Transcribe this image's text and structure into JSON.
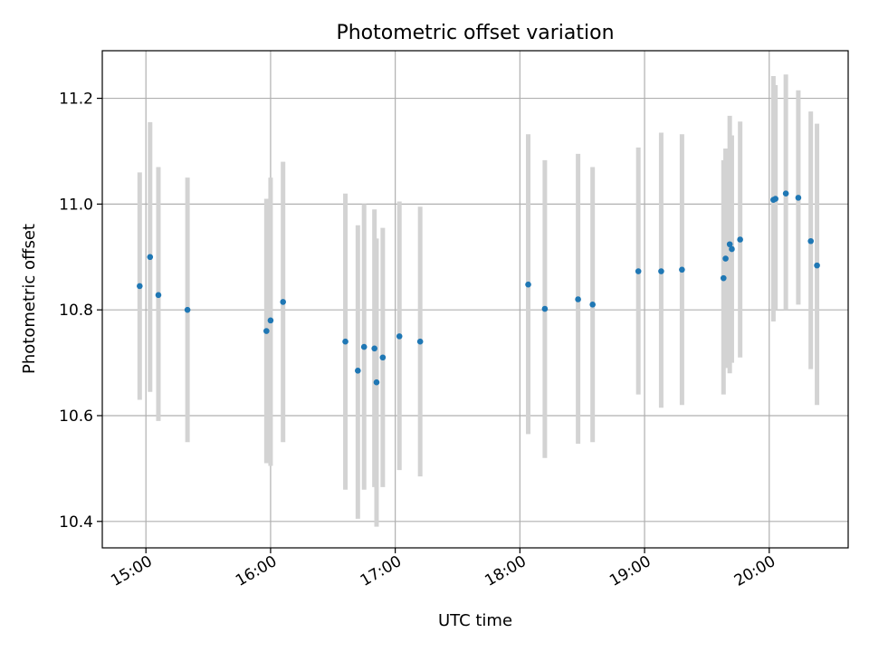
{
  "chart_data": {
    "type": "scatter",
    "title": "Photometric offset variation",
    "xlabel": "UTC time",
    "ylabel": "Photometric offset",
    "x_ticks": [
      "15:00",
      "16:00",
      "17:00",
      "18:00",
      "19:00",
      "20:00"
    ],
    "x_tick_hours": [
      15,
      16,
      17,
      18,
      19,
      20
    ],
    "y_ticks": [
      "10.4",
      "10.6",
      "10.8",
      "11.0",
      "11.2"
    ],
    "y_tick_values": [
      10.4,
      10.6,
      10.8,
      11.0,
      11.2
    ],
    "xlim": [
      "14:39",
      "20:38"
    ],
    "ylim": [
      10.35,
      11.29
    ],
    "grid": true,
    "colors": {
      "points": "#1f77b4",
      "error_bars": "#d3d3d3",
      "grid": "#b0b0b0"
    },
    "series": [
      {
        "points": [
          {
            "x": "14:57",
            "y": 10.845,
            "err_low": 10.63,
            "err_high": 11.06
          },
          {
            "x": "15:02",
            "y": 10.9,
            "err_low": 10.645,
            "err_high": 11.155
          },
          {
            "x": "15:06",
            "y": 10.828,
            "err_low": 10.59,
            "err_high": 11.07
          },
          {
            "x": "15:20",
            "y": 10.8,
            "err_low": 10.55,
            "err_high": 11.05
          },
          {
            "x": "15:58",
            "y": 10.76,
            "err_low": 10.51,
            "err_high": 11.01
          },
          {
            "x": "16:00",
            "y": 10.78,
            "err_low": 10.505,
            "err_high": 11.05
          },
          {
            "x": "16:06",
            "y": 10.815,
            "err_low": 10.55,
            "err_high": 11.08
          },
          {
            "x": "16:36",
            "y": 10.74,
            "err_low": 10.46,
            "err_high": 11.02
          },
          {
            "x": "16:42",
            "y": 10.685,
            "err_low": 10.405,
            "err_high": 10.96
          },
          {
            "x": "16:45",
            "y": 10.73,
            "err_low": 10.46,
            "err_high": 11.0
          },
          {
            "x": "16:50",
            "y": 10.727,
            "err_low": 10.465,
            "err_high": 10.99
          },
          {
            "x": "16:51",
            "y": 10.663,
            "err_low": 10.39,
            "err_high": 10.935
          },
          {
            "x": "16:54",
            "y": 10.71,
            "err_low": 10.465,
            "err_high": 10.955
          },
          {
            "x": "17:02",
            "y": 10.75,
            "err_low": 10.497,
            "err_high": 11.005
          },
          {
            "x": "17:12",
            "y": 10.74,
            "err_low": 10.485,
            "err_high": 10.995
          },
          {
            "x": "18:04",
            "y": 10.848,
            "err_low": 10.565,
            "err_high": 11.132
          },
          {
            "x": "18:12",
            "y": 10.802,
            "err_low": 10.52,
            "err_high": 11.083
          },
          {
            "x": "18:28",
            "y": 10.82,
            "err_low": 10.547,
            "err_high": 11.095
          },
          {
            "x": "18:35",
            "y": 10.81,
            "err_low": 10.55,
            "err_high": 11.07
          },
          {
            "x": "18:57",
            "y": 10.873,
            "err_low": 10.64,
            "err_high": 11.107
          },
          {
            "x": "19:08",
            "y": 10.873,
            "err_low": 10.615,
            "err_high": 11.135
          },
          {
            "x": "19:18",
            "y": 10.876,
            "err_low": 10.62,
            "err_high": 11.132
          },
          {
            "x": "19:38",
            "y": 10.86,
            "err_low": 10.64,
            "err_high": 11.083
          },
          {
            "x": "19:39",
            "y": 10.897,
            "err_low": 10.69,
            "err_high": 11.105
          },
          {
            "x": "19:41",
            "y": 10.924,
            "err_low": 10.68,
            "err_high": 11.167
          },
          {
            "x": "19:42",
            "y": 10.915,
            "err_low": 10.7,
            "err_high": 11.13
          },
          {
            "x": "19:46",
            "y": 10.933,
            "err_low": 10.71,
            "err_high": 11.156
          },
          {
            "x": "20:02",
            "y": 11.008,
            "err_low": 10.778,
            "err_high": 11.242
          },
          {
            "x": "20:03",
            "y": 11.01,
            "err_low": 10.8,
            "err_high": 11.225
          },
          {
            "x": "20:08",
            "y": 11.02,
            "err_low": 10.8,
            "err_high": 11.245
          },
          {
            "x": "20:14",
            "y": 11.012,
            "err_low": 10.81,
            "err_high": 11.215
          },
          {
            "x": "20:20",
            "y": 10.93,
            "err_low": 10.688,
            "err_high": 11.175
          },
          {
            "x": "20:23",
            "y": 10.884,
            "err_low": 10.62,
            "err_high": 11.152
          }
        ]
      }
    ]
  }
}
